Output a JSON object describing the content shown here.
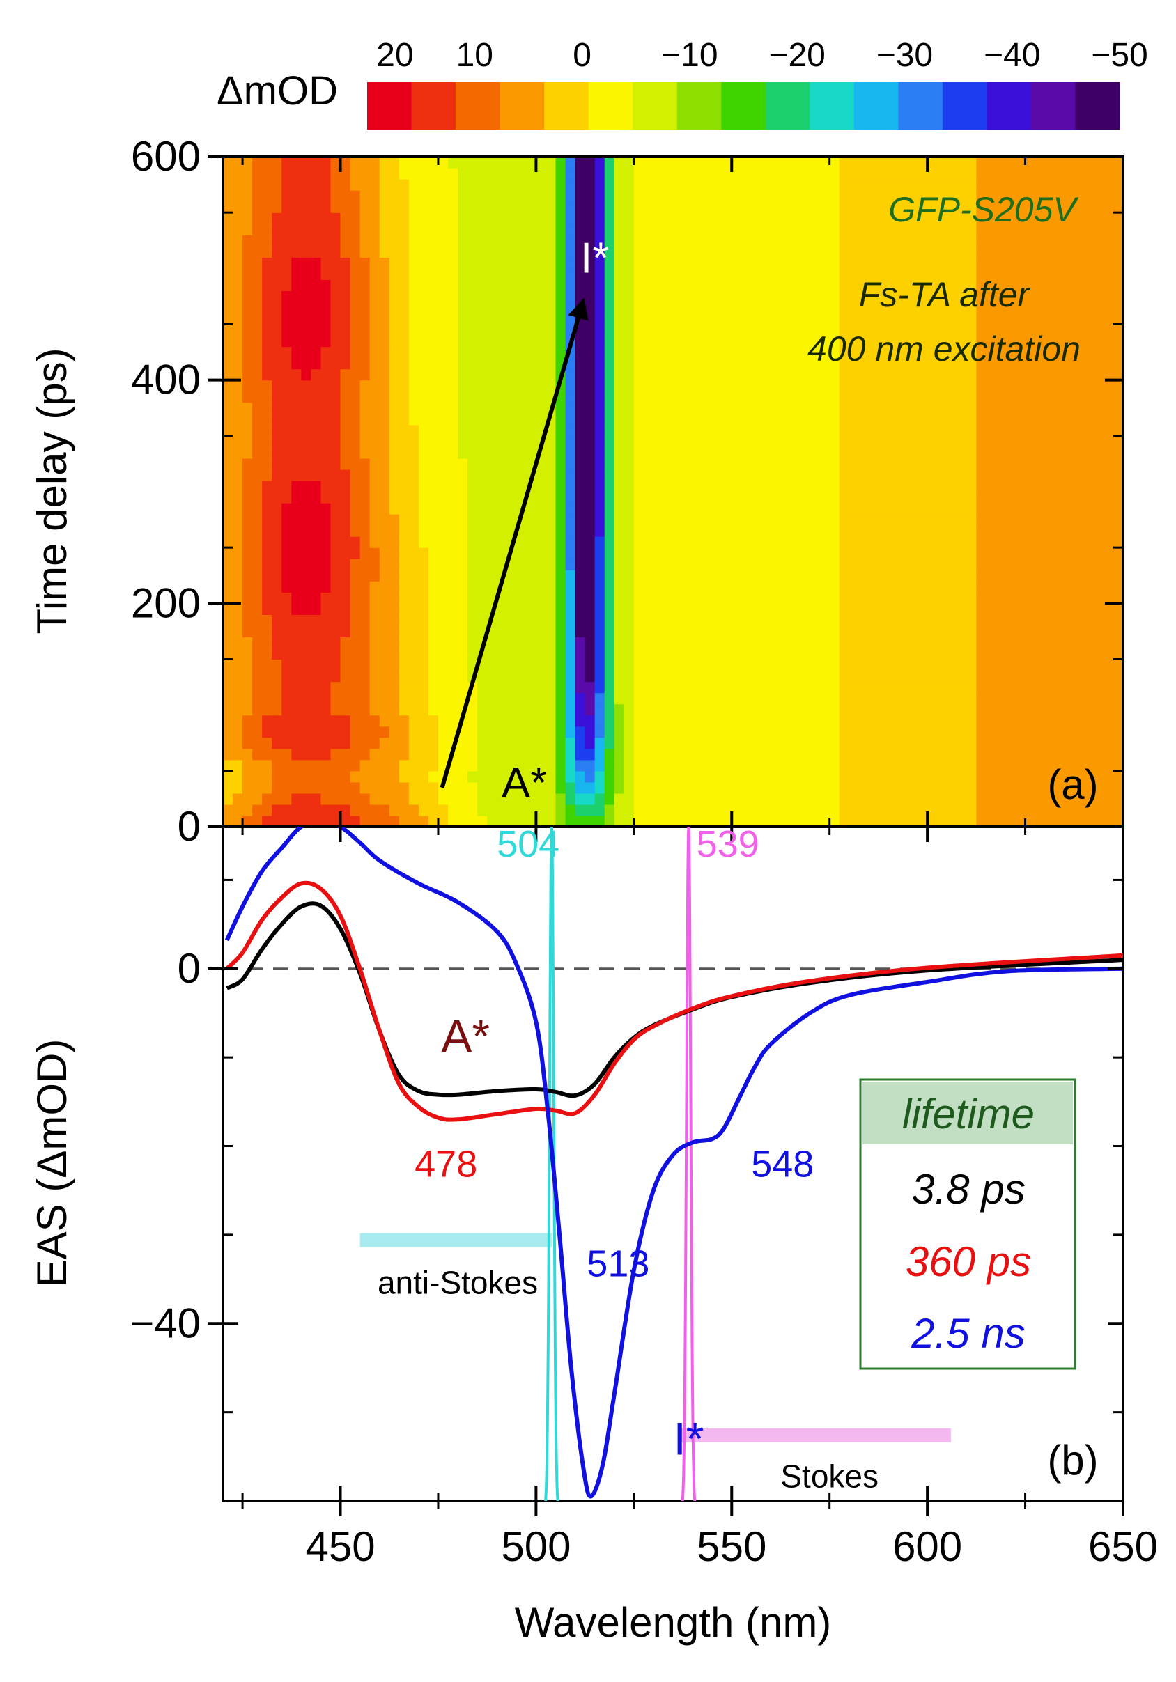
{
  "colorbar": {
    "label": "ΔmOD",
    "ticks": [
      "20",
      "10",
      "0",
      "−10",
      "−20",
      "−30",
      "−40",
      "−50"
    ],
    "values": [
      20,
      10,
      0,
      -10,
      -20,
      -30,
      -40,
      -50
    ],
    "range": [
      20,
      -50
    ],
    "colors": [
      "#e8001a",
      "#ee3010",
      "#f56a00",
      "#fb9a00",
      "#fdd000",
      "#fcf500",
      "#d2f000",
      "#8ee000",
      "#3fd400",
      "#1cd06e",
      "#18d9c8",
      "#17b6ee",
      "#2a7df2",
      "#1d3ef0",
      "#3a10d8",
      "#5a0aa8",
      "#3e0064"
    ]
  },
  "chart_data": [
    {
      "type": "heatmap",
      "panel_label": "(a)",
      "xlim": [
        420,
        650
      ],
      "ylim": [
        0,
        600
      ],
      "xlabel": "Wavelength (nm)",
      "ylabel": "Time delay (ps)",
      "yticks": [
        "0",
        "200",
        "400",
        "600"
      ],
      "ytick_values": [
        0,
        200,
        400,
        600
      ],
      "title_lines": [
        "GFP-S205V",
        "Fs-TA after",
        "400 nm excitation"
      ],
      "annotations": [
        {
          "text": "A*",
          "x": 497,
          "y": 40
        },
        {
          "text": "I*",
          "x": 515,
          "y": 510
        }
      ],
      "arrow": {
        "from": [
          476,
          35
        ],
        "to": [
          512,
          470
        ]
      },
      "features": [
        {
          "name": "stimulated emission band I*",
          "x_center": 513,
          "min_dmod": -50
        },
        {
          "name": "excited state absorption",
          "x_center": 440,
          "max_dmod": 20
        }
      ]
    },
    {
      "type": "line",
      "panel_label": "(b)",
      "xlabel": "Wavelength (nm)",
      "ylabel": "EAS (ΔmOD)",
      "xlim": [
        420,
        650
      ],
      "ylim": [
        -60,
        16
      ],
      "xticks": [
        "450",
        "500",
        "550",
        "600",
        "650"
      ],
      "xtick_values": [
        450,
        500,
        550,
        600,
        650
      ],
      "yticks": [
        "0",
        "−40"
      ],
      "ytick_values": [
        0,
        -40
      ],
      "series": [
        {
          "name": "3.8 ps",
          "color": "#000000",
          "x": [
            421,
            425,
            430,
            435,
            440,
            445,
            450,
            455,
            460,
            465,
            470,
            475,
            480,
            490,
            500,
            505,
            510,
            515,
            520,
            525,
            530,
            540,
            550,
            570,
            600,
            650
          ],
          "y": [
            -2.2,
            -1.2,
            2.2,
            5,
            7,
            7.1,
            4.5,
            -0.5,
            -7,
            -12,
            -13.8,
            -14.2,
            -14.2,
            -13.8,
            -13.6,
            -13.9,
            -14.3,
            -13,
            -10,
            -7.8,
            -6.4,
            -4.6,
            -3.2,
            -1.6,
            -0.2,
            1
          ]
        },
        {
          "name": "360 ps",
          "color": "#e81010",
          "x": [
            421,
            425,
            430,
            435,
            440,
            445,
            450,
            455,
            460,
            465,
            470,
            475,
            480,
            490,
            500,
            505,
            510,
            515,
            520,
            525,
            530,
            540,
            550,
            570,
            600,
            650
          ],
          "y": [
            0,
            1.8,
            5.5,
            8,
            9.6,
            9,
            6,
            0,
            -7,
            -13,
            -15.6,
            -16.8,
            -17,
            -16.4,
            -15.8,
            -16,
            -16.3,
            -14.2,
            -10.7,
            -8,
            -6.5,
            -4.5,
            -3.1,
            -1.4,
            0.1,
            1.5
          ]
        },
        {
          "name": "2.5 ns",
          "color": "#1010e0",
          "x": [
            421,
            425,
            430,
            435,
            440,
            445,
            450,
            455,
            460,
            470,
            480,
            490,
            495,
            500,
            503,
            506,
            509,
            512,
            514,
            517,
            520,
            525,
            530,
            535,
            540,
            545,
            548,
            552,
            556,
            560,
            570,
            580,
            600,
            620,
            650
          ],
          "y": [
            3.2,
            7,
            11,
            13.6,
            16,
            16.6,
            16,
            14.2,
            12.2,
            9.6,
            7.5,
            4.2,
            0.5,
            -6,
            -16,
            -30,
            -45,
            -56,
            -59.5,
            -56,
            -48,
            -34,
            -25,
            -21,
            -19.6,
            -19.2,
            -18,
            -14.5,
            -11,
            -8.5,
            -5,
            -3,
            -1.5,
            -0.3,
            0
          ]
        },
        {
          "name": "laser 504",
          "color": "#30d8d8",
          "kind": "pulse",
          "center": 504,
          "peak": 16,
          "base": -61
        },
        {
          "name": "laser 539",
          "color": "#f060e8",
          "kind": "pulse",
          "center": 539,
          "peak": 16,
          "base": -61
        }
      ],
      "peak_labels": [
        {
          "text": "504",
          "color": "#30d8d8",
          "x": 498,
          "y": 14.2
        },
        {
          "text": "539",
          "color": "#f060e8",
          "x": 549,
          "y": 14.2
        },
        {
          "text": "478",
          "color": "#e81010",
          "x": 477,
          "y": -21.9
        },
        {
          "text": "513",
          "color": "#1010e0",
          "x": 521,
          "y": -33.1
        },
        {
          "text": "548",
          "color": "#1010e0",
          "x": 563,
          "y": -21.9
        }
      ],
      "species_labels": [
        {
          "text": "A*",
          "color": "#7a0f0f",
          "x": 482,
          "y": -7.5
        },
        {
          "text": "I*",
          "color": "#1010e0",
          "x": 539,
          "y": -52.9
        }
      ],
      "bands": [
        {
          "text": "anti-Stokes",
          "color": "#a8ecef",
          "x1": 455,
          "x2": 504,
          "y": -30.6,
          "label_x": 480,
          "label_y": -35.4
        },
        {
          "text": "Stokes",
          "color": "#f4b8f0",
          "x1": 537,
          "x2": 606,
          "y": -52.6,
          "label_x": 575,
          "label_y": -57.2
        }
      ],
      "legend": {
        "title": "lifetime",
        "position": "center-right",
        "entries": [
          {
            "text": "3.8 ps",
            "color": "#000000"
          },
          {
            "text": "360 ps",
            "color": "#e81010"
          },
          {
            "text": "2.5 ns",
            "color": "#1010e0"
          }
        ]
      }
    }
  ]
}
